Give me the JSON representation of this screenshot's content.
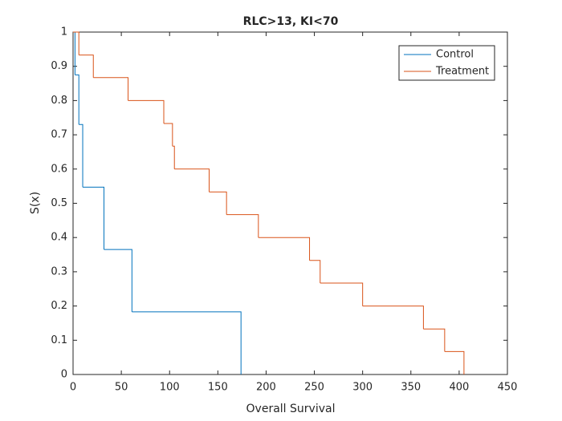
{
  "chart_data": {
    "type": "stairs",
    "title": "RLC>13, KI<70",
    "x_label": "Overall Survival",
    "y_label": "S(x)",
    "xlim": [
      0,
      450
    ],
    "xticks": [
      0,
      50,
      100,
      150,
      200,
      250,
      300,
      350,
      400,
      450
    ],
    "ylim": [
      0,
      1
    ],
    "yticks": [
      0,
      0.1,
      0.2,
      0.3,
      0.4,
      0.5,
      0.6,
      0.7,
      0.8,
      0.9,
      1
    ],
    "legend": "northeast",
    "box": true,
    "series": [
      {
        "name": "Control",
        "color": "#0072bd",
        "x": [
          0,
          2,
          6,
          10,
          32,
          61,
          174
        ],
        "values": [
          1,
          0.875,
          0.73,
          0.547,
          0.365,
          0.183,
          0
        ]
      },
      {
        "name": "Treatment",
        "color": "#d95319",
        "x": [
          0,
          6,
          21,
          57,
          94,
          103,
          105,
          141,
          159,
          192,
          245,
          256,
          300,
          363,
          385,
          405
        ],
        "values": [
          1,
          0.933,
          0.867,
          0.8,
          0.733,
          0.667,
          0.6,
          0.533,
          0.467,
          0.4,
          0.333,
          0.267,
          0.2,
          0.133,
          0.067,
          0
        ]
      }
    ]
  }
}
